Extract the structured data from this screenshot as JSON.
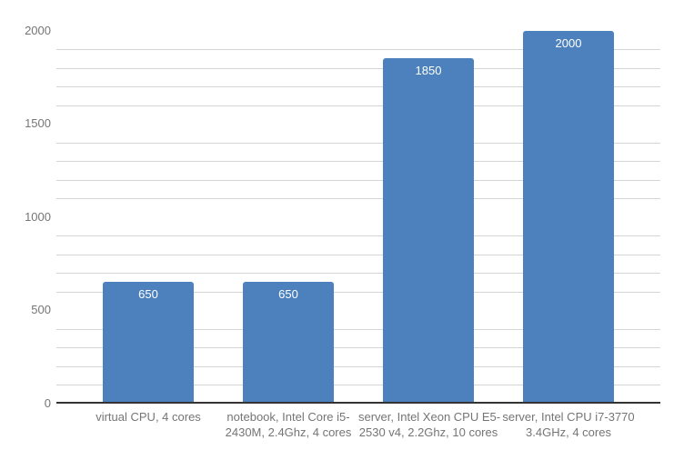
{
  "chart_data": {
    "type": "bar",
    "categories": [
      "virtual CPU, 4 cores",
      "notebook, Intel Core i5-2430M, 2.4Ghz, 4 cores",
      "server, Intel Xeon CPU E5-2530 v4, 2.2Ghz, 10 cores",
      "server, Intel CPU i7-3770 3.4GHz, 4 cores"
    ],
    "category_label_lines": [
      [
        "virtual CPU, 4 cores"
      ],
      [
        "notebook, Intel Core i5-",
        "2430M, 2.4Ghz, 4 cores"
      ],
      [
        "server, Intel Xeon CPU E5-",
        "2530 v4, 2.2Ghz, 10 cores"
      ],
      [
        "server, Intel CPU i7-3770",
        "3.4GHz, 4 cores"
      ]
    ],
    "values": [
      650,
      650,
      1850,
      2000
    ],
    "bar_value_labels": [
      "650",
      "650",
      "1850",
      "2000"
    ],
    "ylim": [
      0,
      2000
    ],
    "yticks": [
      0,
      500,
      1000,
      1500,
      2000
    ],
    "ytick_labels": [
      "0",
      "500",
      "1000",
      "1500",
      "2000"
    ],
    "minor_gridline_step": 100,
    "gridlines_omitted_at_labeled_ticks": true,
    "grid": "horizontal-minor",
    "legend_position": "none",
    "xlabel": "",
    "ylabel": "",
    "colors": {
      "bar": "#4d81bd",
      "gridline": "#d4d4d4",
      "axis_line": "#333333",
      "tick_label": "#757575",
      "bar_value_label": "#ffffff",
      "background": "#ffffff"
    }
  }
}
